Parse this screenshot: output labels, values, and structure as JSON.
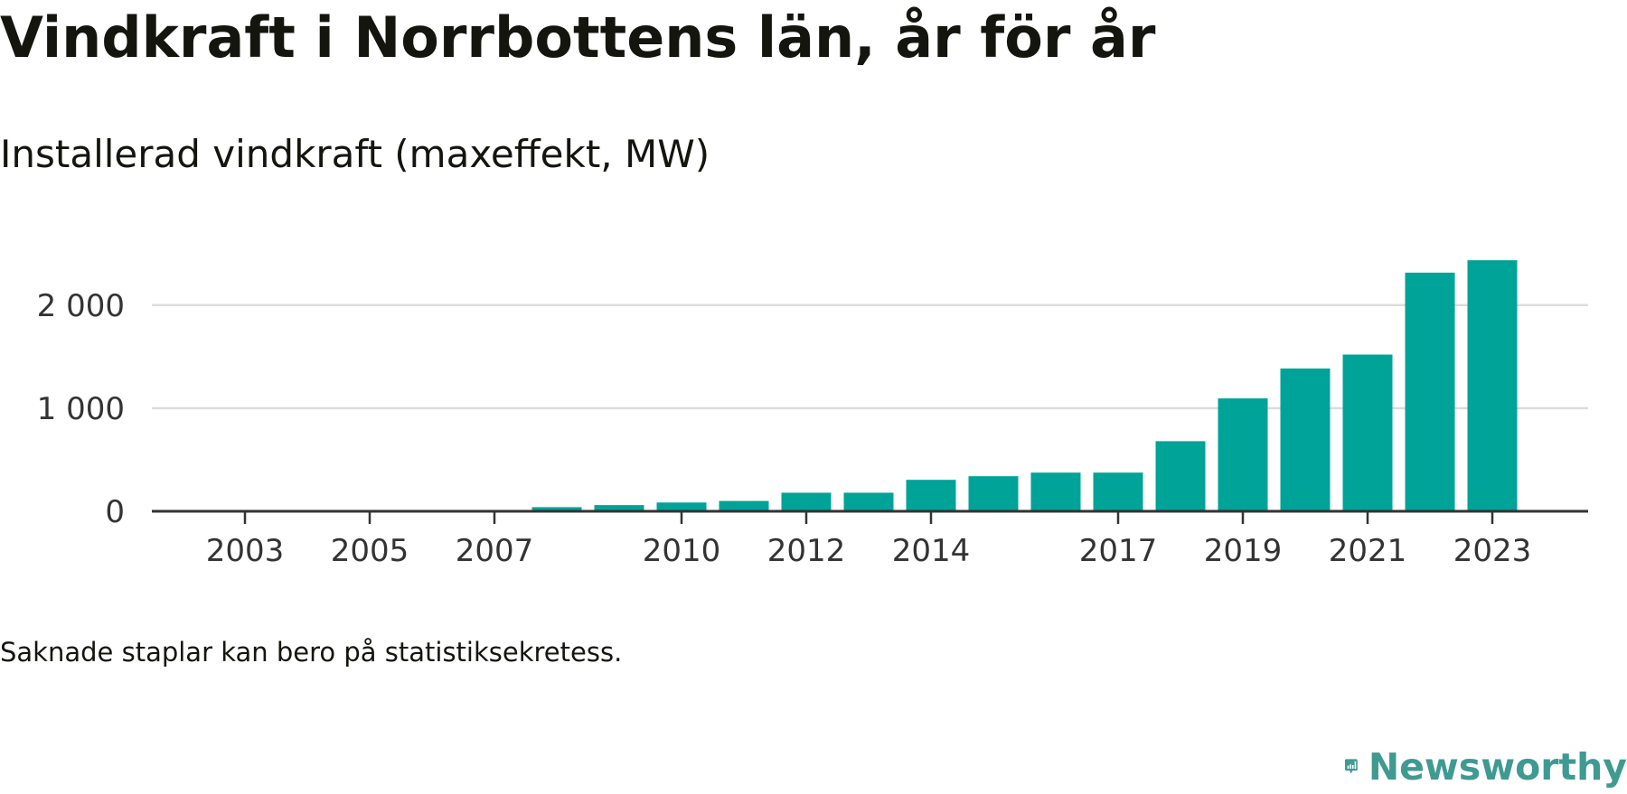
{
  "header": {
    "title": "Vindkraft i Norrbottens län, år för år",
    "subtitle": "Installerad vindkraft (maxeffekt, MW)"
  },
  "footer": {
    "note": "Saknade staplar kan bero på statistiksekretess.",
    "brand_name": "Newsworthy",
    "brand_icon": "speech-bubble-bar-chart-icon"
  },
  "colors": {
    "bar": "#00a398",
    "gridline": "#dcdcdc",
    "axis": "#333333",
    "text": "#15150f",
    "brand": "#3f9a91"
  },
  "chart_data": {
    "type": "bar",
    "title": "Vindkraft i Norrbottens län, år för år",
    "subtitle": "Installerad vindkraft (maxeffekt, MW)",
    "xlabel": "",
    "ylabel": "",
    "x": [
      2002,
      2003,
      2004,
      2005,
      2006,
      2007,
      2008,
      2009,
      2010,
      2011,
      2012,
      2013,
      2014,
      2015,
      2016,
      2017,
      2018,
      2019,
      2020,
      2021,
      2022,
      2023
    ],
    "values": [
      0,
      0,
      0,
      0,
      0,
      0,
      40,
      60,
      85,
      100,
      180,
      180,
      305,
      340,
      375,
      375,
      680,
      1095,
      1385,
      1520,
      2315,
      2435
    ],
    "x_tick_labels": [
      "2003",
      "2005",
      "2007",
      "2010",
      "2012",
      "2014",
      "2017",
      "2019",
      "2021",
      "2023"
    ],
    "y_ticks": [
      0,
      1000,
      2000
    ],
    "y_tick_labels": [
      "0",
      "1 000",
      "2 000"
    ],
    "ylim": [
      0,
      2520
    ],
    "grid": true,
    "legend": "none"
  }
}
